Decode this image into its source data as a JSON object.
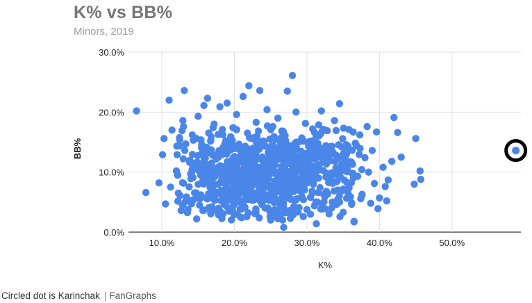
{
  "chart_data": {
    "type": "scatter",
    "title": "K% vs BB%",
    "subtitle": "Minors, 2019",
    "xlabel": "K%",
    "ylabel": "BB%",
    "xlim": [
      5.4,
      59.5
    ],
    "ylim": [
      0,
      30
    ],
    "xticks": [
      10,
      20,
      30,
      40,
      50
    ],
    "xtick_labels": [
      "10.0%",
      "20.0%",
      "30.0%",
      "40.0%",
      "50.0%"
    ],
    "yticks": [
      0,
      10,
      20,
      30
    ],
    "ytick_labels": [
      "0.0%",
      "10.0%",
      "20.0%",
      "30.0%"
    ],
    "grid": true,
    "legend": "none",
    "colors": {
      "points": "#4a86e8",
      "highlight_ring": "#000000",
      "grid": "#e0e0e0",
      "axis_text": "#222222"
    },
    "highlighted_point": {
      "x": 58.8,
      "y": 13.6
    },
    "points": [
      {
        "x": 6.5,
        "y": 20.2
      },
      {
        "x": 7.8,
        "y": 6.6
      },
      {
        "x": 9.6,
        "y": 8.2
      },
      {
        "x": 10.1,
        "y": 12.9
      },
      {
        "x": 10.3,
        "y": 15.6
      },
      {
        "x": 10.5,
        "y": 4.7
      },
      {
        "x": 11.0,
        "y": 22.0
      },
      {
        "x": 11.2,
        "y": 7.5
      },
      {
        "x": 11.4,
        "y": 17.0
      },
      {
        "x": 12.0,
        "y": 10.2
      },
      {
        "x": 12.5,
        "y": 6.1
      },
      {
        "x": 12.9,
        "y": 18.6
      },
      {
        "x": 13.1,
        "y": 23.6
      },
      {
        "x": 13.3,
        "y": 14.7
      },
      {
        "x": 13.6,
        "y": 3.8
      },
      {
        "x": 14.0,
        "y": 8.9
      },
      {
        "x": 14.2,
        "y": 16.2
      },
      {
        "x": 14.5,
        "y": 11.5
      },
      {
        "x": 14.8,
        "y": 2.2
      },
      {
        "x": 15.0,
        "y": 19.3
      },
      {
        "x": 15.3,
        "y": 5.6
      },
      {
        "x": 15.5,
        "y": 13.1
      },
      {
        "x": 15.8,
        "y": 21.1
      },
      {
        "x": 16.0,
        "y": 9.4
      },
      {
        "x": 16.3,
        "y": 22.3
      },
      {
        "x": 16.5,
        "y": 4.1
      },
      {
        "x": 16.8,
        "y": 15.9
      },
      {
        "x": 17.0,
        "y": 7.2
      },
      {
        "x": 17.2,
        "y": 18.0
      },
      {
        "x": 17.5,
        "y": 12.2
      },
      {
        "x": 17.8,
        "y": 2.9
      },
      {
        "x": 18.0,
        "y": 20.9
      },
      {
        "x": 18.2,
        "y": 10.6
      },
      {
        "x": 18.5,
        "y": 6.4
      },
      {
        "x": 18.8,
        "y": 14.3
      },
      {
        "x": 19.0,
        "y": 21.5
      },
      {
        "x": 19.3,
        "y": 3.5
      },
      {
        "x": 19.5,
        "y": 11.0
      },
      {
        "x": 19.8,
        "y": 17.4
      },
      {
        "x": 20.0,
        "y": 8.0
      },
      {
        "x": 20.3,
        "y": 19.6
      },
      {
        "x": 20.5,
        "y": 5.1
      },
      {
        "x": 20.8,
        "y": 13.7
      },
      {
        "x": 21.0,
        "y": 2.4
      },
      {
        "x": 21.2,
        "y": 22.6
      },
      {
        "x": 21.5,
        "y": 9.8
      },
      {
        "x": 21.8,
        "y": 16.5
      },
      {
        "x": 22.0,
        "y": 24.4
      },
      {
        "x": 22.2,
        "y": 6.8
      },
      {
        "x": 22.5,
        "y": 12.6
      },
      {
        "x": 22.8,
        "y": 3.1
      },
      {
        "x": 23.0,
        "y": 18.3
      },
      {
        "x": 23.2,
        "y": 10.2
      },
      {
        "x": 23.5,
        "y": 23.6
      },
      {
        "x": 23.8,
        "y": 4.6
      },
      {
        "x": 24.0,
        "y": 15.2
      },
      {
        "x": 24.3,
        "y": 8.5
      },
      {
        "x": 24.5,
        "y": 20.4
      },
      {
        "x": 24.8,
        "y": 11.8
      },
      {
        "x": 25.0,
        "y": 2.0
      },
      {
        "x": 25.3,
        "y": 17.6
      },
      {
        "x": 25.5,
        "y": 7.6
      },
      {
        "x": 25.8,
        "y": 13.9
      },
      {
        "x": 26.0,
        "y": 19.0
      },
      {
        "x": 26.2,
        "y": 5.4
      },
      {
        "x": 26.5,
        "y": 10.9
      },
      {
        "x": 26.8,
        "y": 0.8
      },
      {
        "x": 27.0,
        "y": 16.1
      },
      {
        "x": 27.3,
        "y": 23.5
      },
      {
        "x": 27.5,
        "y": 8.9
      },
      {
        "x": 27.8,
        "y": 12.8
      },
      {
        "x": 28.0,
        "y": 26.1
      },
      {
        "x": 28.2,
        "y": 4.3
      },
      {
        "x": 28.5,
        "y": 20.0
      },
      {
        "x": 28.8,
        "y": 11.2
      },
      {
        "x": 29.0,
        "y": 6.9
      },
      {
        "x": 29.3,
        "y": 15.7
      },
      {
        "x": 29.5,
        "y": 2.6
      },
      {
        "x": 29.8,
        "y": 18.1
      },
      {
        "x": 30.0,
        "y": 9.6
      },
      {
        "x": 30.3,
        "y": 13.3
      },
      {
        "x": 30.5,
        "y": 5.8
      },
      {
        "x": 30.8,
        "y": 17.2
      },
      {
        "x": 31.0,
        "y": 10.4
      },
      {
        "x": 31.3,
        "y": 1.4
      },
      {
        "x": 31.5,
        "y": 14.8
      },
      {
        "x": 31.8,
        "y": 7.4
      },
      {
        "x": 32.0,
        "y": 20.2
      },
      {
        "x": 32.3,
        "y": 11.6
      },
      {
        "x": 32.5,
        "y": 3.9
      },
      {
        "x": 32.8,
        "y": 16.9
      },
      {
        "x": 33.0,
        "y": 9.1
      },
      {
        "x": 33.3,
        "y": 13.0
      },
      {
        "x": 33.5,
        "y": 5.0
      },
      {
        "x": 33.8,
        "y": 18.6
      },
      {
        "x": 34.0,
        "y": 10.7
      },
      {
        "x": 34.3,
        "y": 7.0
      },
      {
        "x": 34.5,
        "y": 21.4
      },
      {
        "x": 34.8,
        "y": 14.2
      },
      {
        "x": 35.0,
        "y": 3.3
      },
      {
        "x": 35.3,
        "y": 12.1
      },
      {
        "x": 35.5,
        "y": 8.3
      },
      {
        "x": 35.8,
        "y": 17.1
      },
      {
        "x": 36.0,
        "y": 5.9
      },
      {
        "x": 36.3,
        "y": 11.3
      },
      {
        "x": 36.5,
        "y": 1.7
      },
      {
        "x": 36.8,
        "y": 14.5
      },
      {
        "x": 37.0,
        "y": 9.3
      },
      {
        "x": 37.3,
        "y": 16.2
      },
      {
        "x": 37.6,
        "y": 6.3
      },
      {
        "x": 38.0,
        "y": 12.4
      },
      {
        "x": 38.3,
        "y": 17.6
      },
      {
        "x": 38.5,
        "y": 10.0
      },
      {
        "x": 38.8,
        "y": 4.8
      },
      {
        "x": 39.0,
        "y": 13.6
      },
      {
        "x": 39.3,
        "y": 8.1
      },
      {
        "x": 39.6,
        "y": 16.7
      },
      {
        "x": 40.0,
        "y": 5.7
      },
      {
        "x": 40.5,
        "y": 10.8
      },
      {
        "x": 40.8,
        "y": 7.6
      },
      {
        "x": 41.2,
        "y": 8.7
      },
      {
        "x": 41.7,
        "y": 11.8
      },
      {
        "x": 42.0,
        "y": 19.1
      },
      {
        "x": 42.5,
        "y": 16.6
      },
      {
        "x": 43.0,
        "y": 12.5
      },
      {
        "x": 44.8,
        "y": 8.0
      },
      {
        "x": 45.0,
        "y": 15.6
      },
      {
        "x": 45.6,
        "y": 10.2
      },
      {
        "x": 45.7,
        "y": 8.8
      },
      {
        "x": 41.0,
        "y": 5.2
      },
      {
        "x": 39.8,
        "y": 3.9
      },
      {
        "x": 36.5,
        "y": 1.8
      },
      {
        "x": 17.8,
        "y": 12.5
      },
      {
        "x": 19.2,
        "y": 9.0
      },
      {
        "x": 21.4,
        "y": 11.5
      },
      {
        "x": 23.7,
        "y": 8.0
      },
      {
        "x": 25.6,
        "y": 12.0
      },
      {
        "x": 27.6,
        "y": 10.1
      },
      {
        "x": 29.6,
        "y": 12.2
      },
      {
        "x": 31.6,
        "y": 9.0
      },
      {
        "x": 22.6,
        "y": 14.0
      },
      {
        "x": 26.4,
        "y": 14.4
      },
      {
        "x": 20.2,
        "y": 7.0
      },
      {
        "x": 24.6,
        "y": 6.2
      },
      {
        "x": 28.6,
        "y": 7.6
      },
      {
        "x": 33.2,
        "y": 11.9
      },
      {
        "x": 15.6,
        "y": 10.8
      },
      {
        "x": 35.6,
        "y": 10.4
      }
    ]
  },
  "caption": {
    "text": "Circled dot is Karinchak",
    "separator": "|",
    "source": "FanGraphs"
  }
}
